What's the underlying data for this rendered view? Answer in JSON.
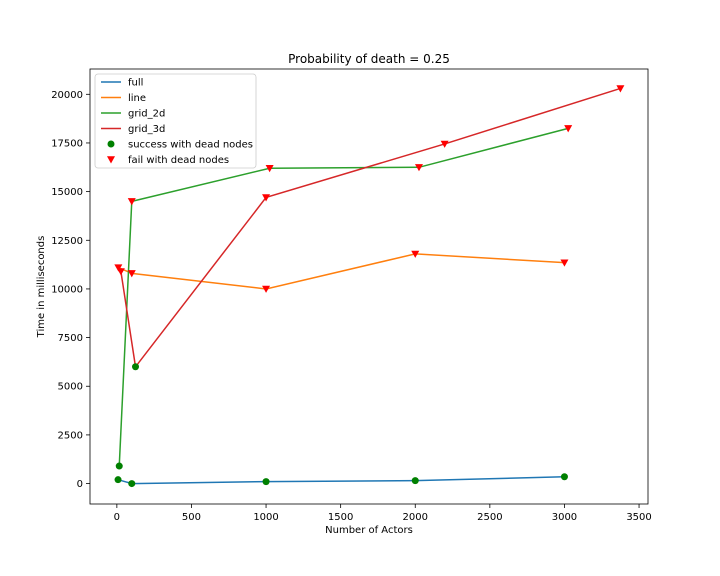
{
  "chart_data": {
    "type": "line",
    "title": "Probability of death = 0.25",
    "xlabel": "Number of Actors",
    "ylabel": "Time in milliseconds",
    "xlim": [
      -180,
      3560
    ],
    "ylim": [
      -1050,
      21300
    ],
    "xticks": [
      0,
      500,
      1000,
      1500,
      2000,
      2500,
      3000,
      3500
    ],
    "yticks": [
      0,
      2500,
      5000,
      7500,
      10000,
      12500,
      15000,
      17500,
      20000
    ],
    "grid": false,
    "legend_position": "top-left",
    "series": [
      {
        "name": "full",
        "kind": "line",
        "color": "#1f77b4",
        "x": [
          8,
          100,
          1000,
          2000,
          3000
        ],
        "y": [
          200,
          0,
          100,
          150,
          350
        ]
      },
      {
        "name": "line",
        "kind": "line",
        "color": "#ff7f0e",
        "x": [
          10,
          100,
          1000,
          2000,
          3000
        ],
        "y": [
          11100,
          10800,
          10000,
          11800,
          11350
        ]
      },
      {
        "name": "grid_2d",
        "kind": "line",
        "color": "#2ca02c",
        "x": [
          16,
          100,
          1024,
          2025,
          3025
        ],
        "y": [
          900,
          14500,
          16200,
          16250,
          18250
        ]
      },
      {
        "name": "grid_3d",
        "kind": "line",
        "color": "#d62728",
        "x": [
          27,
          125,
          1000,
          2197,
          3375
        ],
        "y": [
          10900,
          6000,
          14700,
          17450,
          20300
        ]
      },
      {
        "name": "success with dead nodes",
        "kind": "scatter",
        "marker": "circle",
        "color": "#008000",
        "x": [
          8,
          100,
          1000,
          2000,
          3000,
          16,
          125
        ],
        "y": [
          200,
          0,
          100,
          150,
          350,
          900,
          6000
        ]
      },
      {
        "name": "fail with dead nodes",
        "kind": "scatter",
        "marker": "triangle-down",
        "color": "#ff0000",
        "x": [
          10,
          100,
          1000,
          2000,
          3000,
          100,
          1024,
          2025,
          3025,
          27,
          1000,
          2197,
          3375
        ],
        "y": [
          11100,
          10800,
          10000,
          11800,
          11350,
          14500,
          16200,
          16250,
          18250,
          10900,
          14700,
          17450,
          20300
        ]
      }
    ]
  }
}
